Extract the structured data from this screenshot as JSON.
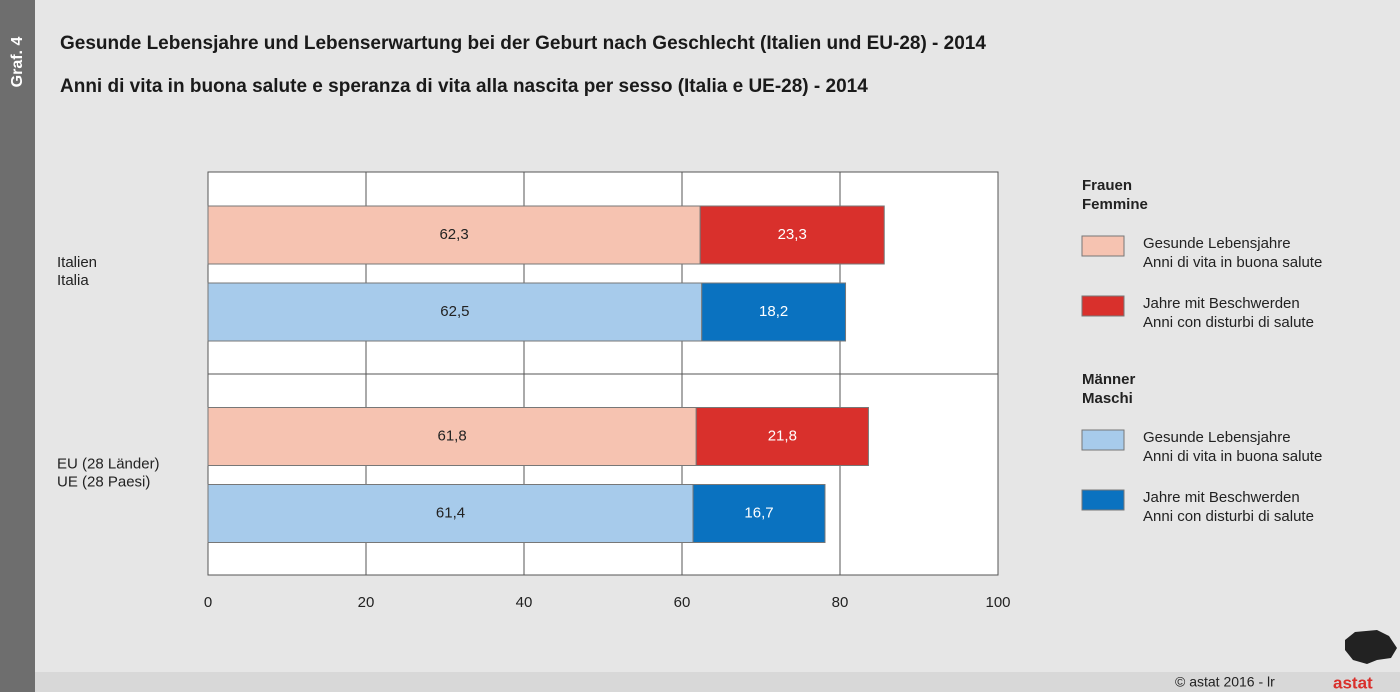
{
  "side_label": "Graf. 4",
  "chart_data": {
    "type": "bar",
    "orientation": "horizontal",
    "stacked": true,
    "title": "Gesunde Lebensjahre und Lebenserwartung bei der Geburt nach Geschlecht (Italien und EU-28) - 2014",
    "subtitle": "Anni di vita in buona salute e speranza di vita alla nascita per sesso (Italia e UE-28) - 2014",
    "categories": [
      [
        "Italien",
        "Italia"
      ],
      [
        "EU (28 Länder)",
        "UE (28 Paesi)"
      ]
    ],
    "groups": [
      {
        "name": [
          "Frauen",
          "Femmine"
        ],
        "series": [
          {
            "name": [
              "Gesunde Lebensjahre",
              "Anni di vita in buona salute"
            ],
            "color": "#f6c3b1",
            "values": [
              62.3,
              61.8
            ],
            "value_labels": [
              "62,3",
              "61,8"
            ]
          },
          {
            "name": [
              "Jahre mit Beschwerden",
              "Anni con disturbi di salute"
            ],
            "color": "#d9302c",
            "values": [
              23.3,
              21.8
            ],
            "value_labels": [
              "23,3",
              "21,8"
            ]
          }
        ]
      },
      {
        "name": [
          "Männer",
          "Maschi"
        ],
        "series": [
          {
            "name": [
              "Gesunde Lebensjahre",
              "Anni di vita in buona salute"
            ],
            "color": "#a7cbeb",
            "values": [
              62.5,
              61.4
            ],
            "value_labels": [
              "62,5",
              "61,4"
            ]
          },
          {
            "name": [
              "Jahre mit Beschwerden",
              "Anni con disturbi di salute"
            ],
            "color": "#0a72c0",
            "values": [
              18.2,
              16.7
            ],
            "value_labels": [
              "18,2",
              "16,7"
            ]
          }
        ]
      }
    ],
    "xlim": [
      0,
      100
    ],
    "xticks": [
      0,
      20,
      40,
      60,
      80,
      100
    ],
    "grid": true
  },
  "footer": {
    "credit": "©  astat 2016 - lr",
    "logo": "astat"
  }
}
